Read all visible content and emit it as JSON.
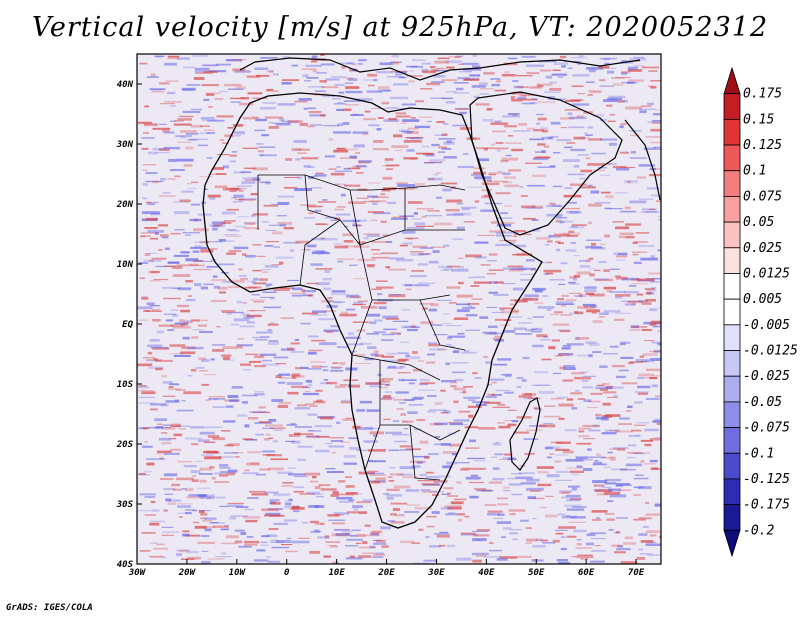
{
  "title": "Vertical velocity [m/s] at 925hPa, VT: 2020052312",
  "credit": "GrADS: IGES/COLA",
  "map": {
    "region": "Africa and surrounding oceans",
    "lon_range": [
      -30,
      75
    ],
    "lat_range": [
      -40,
      45
    ],
    "lon_ticks": [
      "30W",
      "20W",
      "10W",
      "0",
      "10E",
      "20E",
      "30E",
      "40E",
      "50E",
      "60E",
      "70E"
    ],
    "lon_values": [
      -30,
      -20,
      -10,
      0,
      10,
      20,
      30,
      40,
      50,
      60,
      70
    ],
    "lat_ticks": [
      "40N",
      "30N",
      "20N",
      "10N",
      "EQ",
      "10S",
      "20S",
      "30S",
      "40S"
    ],
    "lat_values": [
      40,
      30,
      20,
      10,
      0,
      -10,
      -20,
      -30,
      -40
    ]
  },
  "colorbar": {
    "labels": [
      "0.175",
      "0.15",
      "0.125",
      "0.1",
      "0.075",
      "0.05",
      "0.025",
      "0.0125",
      "0.005",
      "-0.005",
      "-0.0125",
      "-0.025",
      "-0.05",
      "-0.075",
      "-0.1",
      "-0.125",
      "-0.175",
      "-0.2"
    ],
    "colors": [
      "#a00f14",
      "#c41e24",
      "#e03534",
      "#f0595a",
      "#f57f7f",
      "#f8a0a0",
      "#fbc2c2",
      "#fde0e0",
      "#ffffff",
      "#ffffff",
      "#e0e0fb",
      "#c8c8f5",
      "#adadf0",
      "#8e8ee8",
      "#6e6ede",
      "#4b4bcd",
      "#2d2db4",
      "#1a1a96",
      "#0c0c7a"
    ]
  },
  "colors": {
    "red": "#d94848",
    "blue": "#6a6ae8",
    "coast": "#000000"
  }
}
